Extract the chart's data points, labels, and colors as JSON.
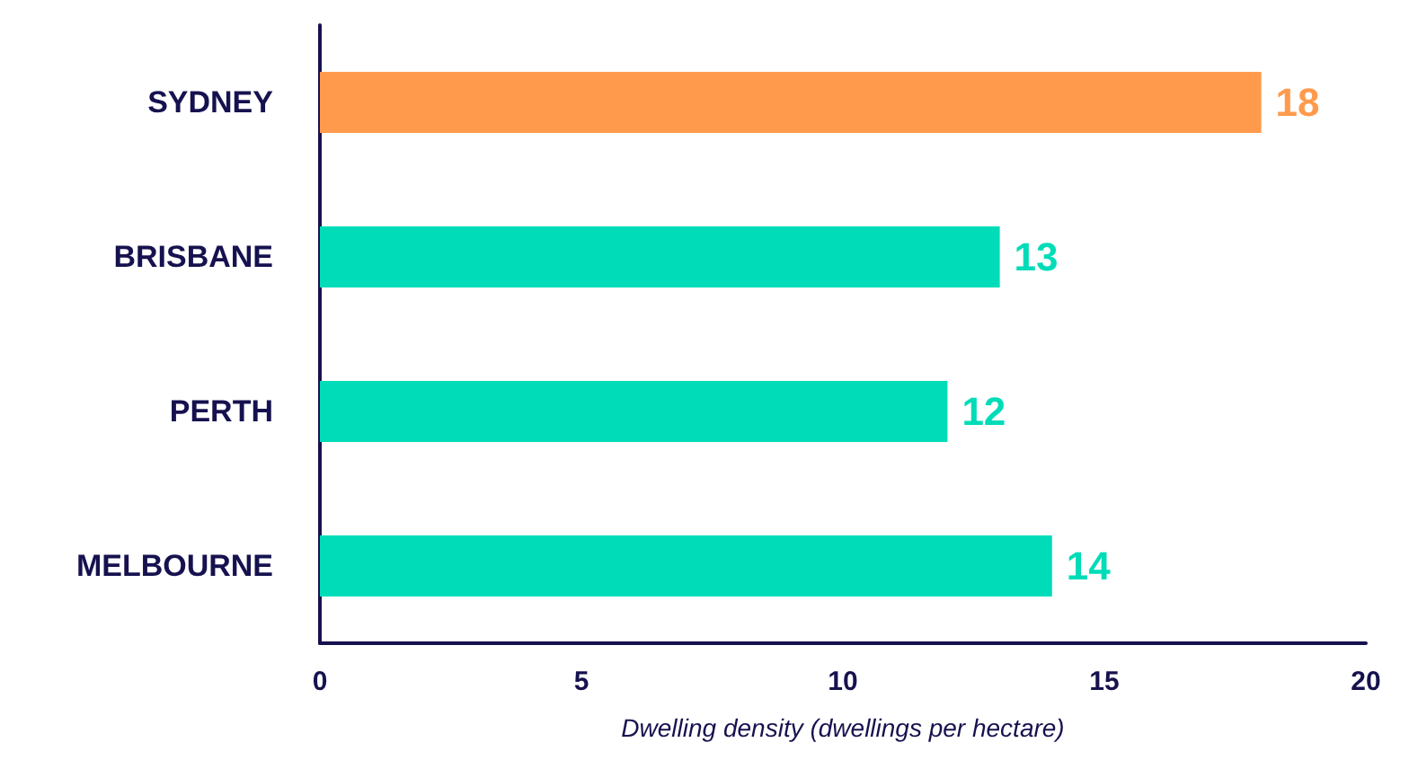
{
  "chart_data": {
    "type": "bar",
    "orientation": "horizontal",
    "xlabel": "Dwelling density (dwellings per hectare)",
    "categories": [
      "SYDNEY",
      "BRISBANE",
      "PERTH",
      "MELBOURNE"
    ],
    "values": [
      18,
      13,
      12,
      14
    ],
    "colors": [
      "#ff9a4d",
      "#00dcb8",
      "#00dcb8",
      "#00dcb8"
    ],
    "xlim": [
      0,
      20
    ],
    "xticks": [
      0,
      5,
      10,
      15,
      20
    ],
    "grid": false,
    "data_labels": true
  }
}
